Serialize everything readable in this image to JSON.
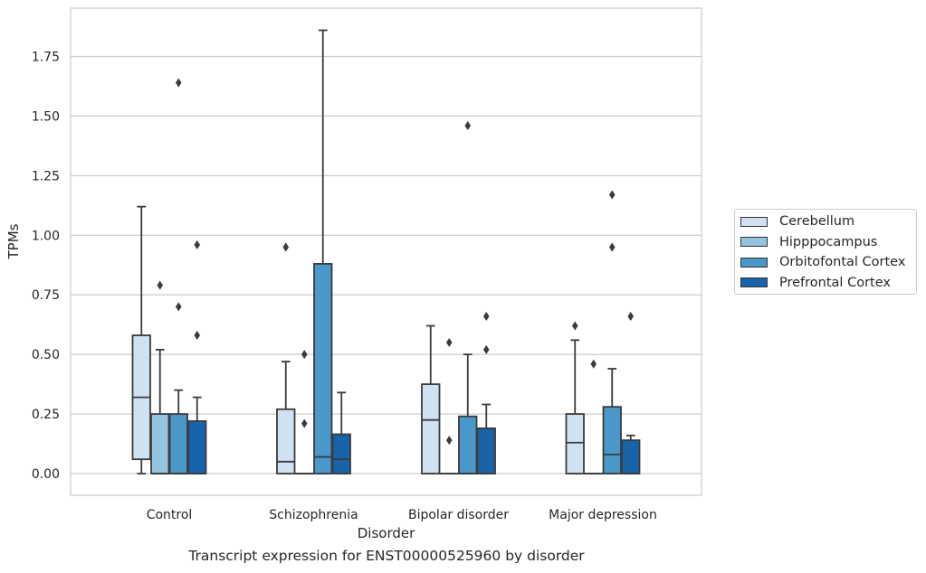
{
  "caption": "Transcript expression for ENST00000525960 by disorder",
  "chart_data": {
    "type": "box",
    "title": "",
    "xlabel": "Disorder",
    "ylabel": "TPMs",
    "ylim": [
      -0.09,
      1.96
    ],
    "yticks": [
      "0.00",
      "0.25",
      "0.50",
      "0.75",
      "1.00",
      "1.25",
      "1.50",
      "1.75"
    ],
    "grid": "horizontal",
    "legend_position": "right",
    "categories": [
      "Control",
      "Schizophrenia",
      "Bipolar disorder",
      "Major depression"
    ],
    "series": [
      {
        "name": "Cerebellum",
        "color": "#d0e1f2",
        "boxes": [
          {
            "whislo": 0.0,
            "q1": 0.06,
            "med": 0.32,
            "q3": 0.58,
            "whishi": 1.12,
            "fliers": []
          },
          {
            "whislo": 0.0,
            "q1": 0.0,
            "med": 0.05,
            "q3": 0.27,
            "whishi": 0.47,
            "fliers": [
              0.95
            ]
          },
          {
            "whislo": 0.0,
            "q1": 0.0,
            "med": 0.225,
            "q3": 0.375,
            "whishi": 0.62,
            "fliers": []
          },
          {
            "whislo": 0.0,
            "q1": 0.0,
            "med": 0.13,
            "q3": 0.25,
            "whishi": 0.56,
            "fliers": [
              0.62
            ]
          }
        ]
      },
      {
        "name": "Hipppocampus",
        "color": "#94c4df",
        "boxes": [
          {
            "whislo": 0.0,
            "q1": 0.0,
            "med": 0.0,
            "q3": 0.25,
            "whishi": 0.52,
            "fliers": [
              0.79
            ]
          },
          {
            "whislo": 0.0,
            "q1": 0.0,
            "med": 0.0,
            "q3": 0.0,
            "whishi": 0.0,
            "fliers": [
              0.21,
              0.5
            ]
          },
          {
            "whislo": 0.0,
            "q1": 0.0,
            "med": 0.0,
            "q3": 0.0,
            "whishi": 0.0,
            "fliers": [
              0.14,
              0.55
            ]
          },
          {
            "whislo": 0.0,
            "q1": 0.0,
            "med": 0.0,
            "q3": 0.0,
            "whishi": 0.0,
            "fliers": [
              0.46
            ]
          }
        ]
      },
      {
        "name": "Orbitofontal Cortex",
        "color": "#4a98c9",
        "boxes": [
          {
            "whislo": 0.0,
            "q1": 0.0,
            "med": 0.0,
            "q3": 0.25,
            "whishi": 0.35,
            "fliers": [
              0.7,
              1.64
            ]
          },
          {
            "whislo": 0.0,
            "q1": 0.0,
            "med": 0.07,
            "q3": 0.88,
            "whishi": 1.86,
            "fliers": []
          },
          {
            "whislo": 0.0,
            "q1": 0.0,
            "med": 0.0,
            "q3": 0.24,
            "whishi": 0.5,
            "fliers": [
              1.46
            ]
          },
          {
            "whislo": 0.0,
            "q1": 0.0,
            "med": 0.08,
            "q3": 0.28,
            "whishi": 0.44,
            "fliers": [
              0.95,
              1.17
            ]
          }
        ]
      },
      {
        "name": "Prefrontal Cortex",
        "color": "#1764ab",
        "boxes": [
          {
            "whislo": 0.0,
            "q1": 0.0,
            "med": 0.0,
            "q3": 0.22,
            "whishi": 0.32,
            "fliers": [
              0.58,
              0.96
            ]
          },
          {
            "whislo": 0.0,
            "q1": 0.0,
            "med": 0.06,
            "q3": 0.165,
            "whishi": 0.34,
            "fliers": []
          },
          {
            "whislo": 0.0,
            "q1": 0.0,
            "med": 0.0,
            "q3": 0.19,
            "whishi": 0.29,
            "fliers": [
              0.52,
              0.66
            ]
          },
          {
            "whislo": 0.0,
            "q1": 0.0,
            "med": 0.0,
            "q3": 0.14,
            "whishi": 0.16,
            "fliers": [
              0.66
            ]
          }
        ]
      }
    ]
  }
}
